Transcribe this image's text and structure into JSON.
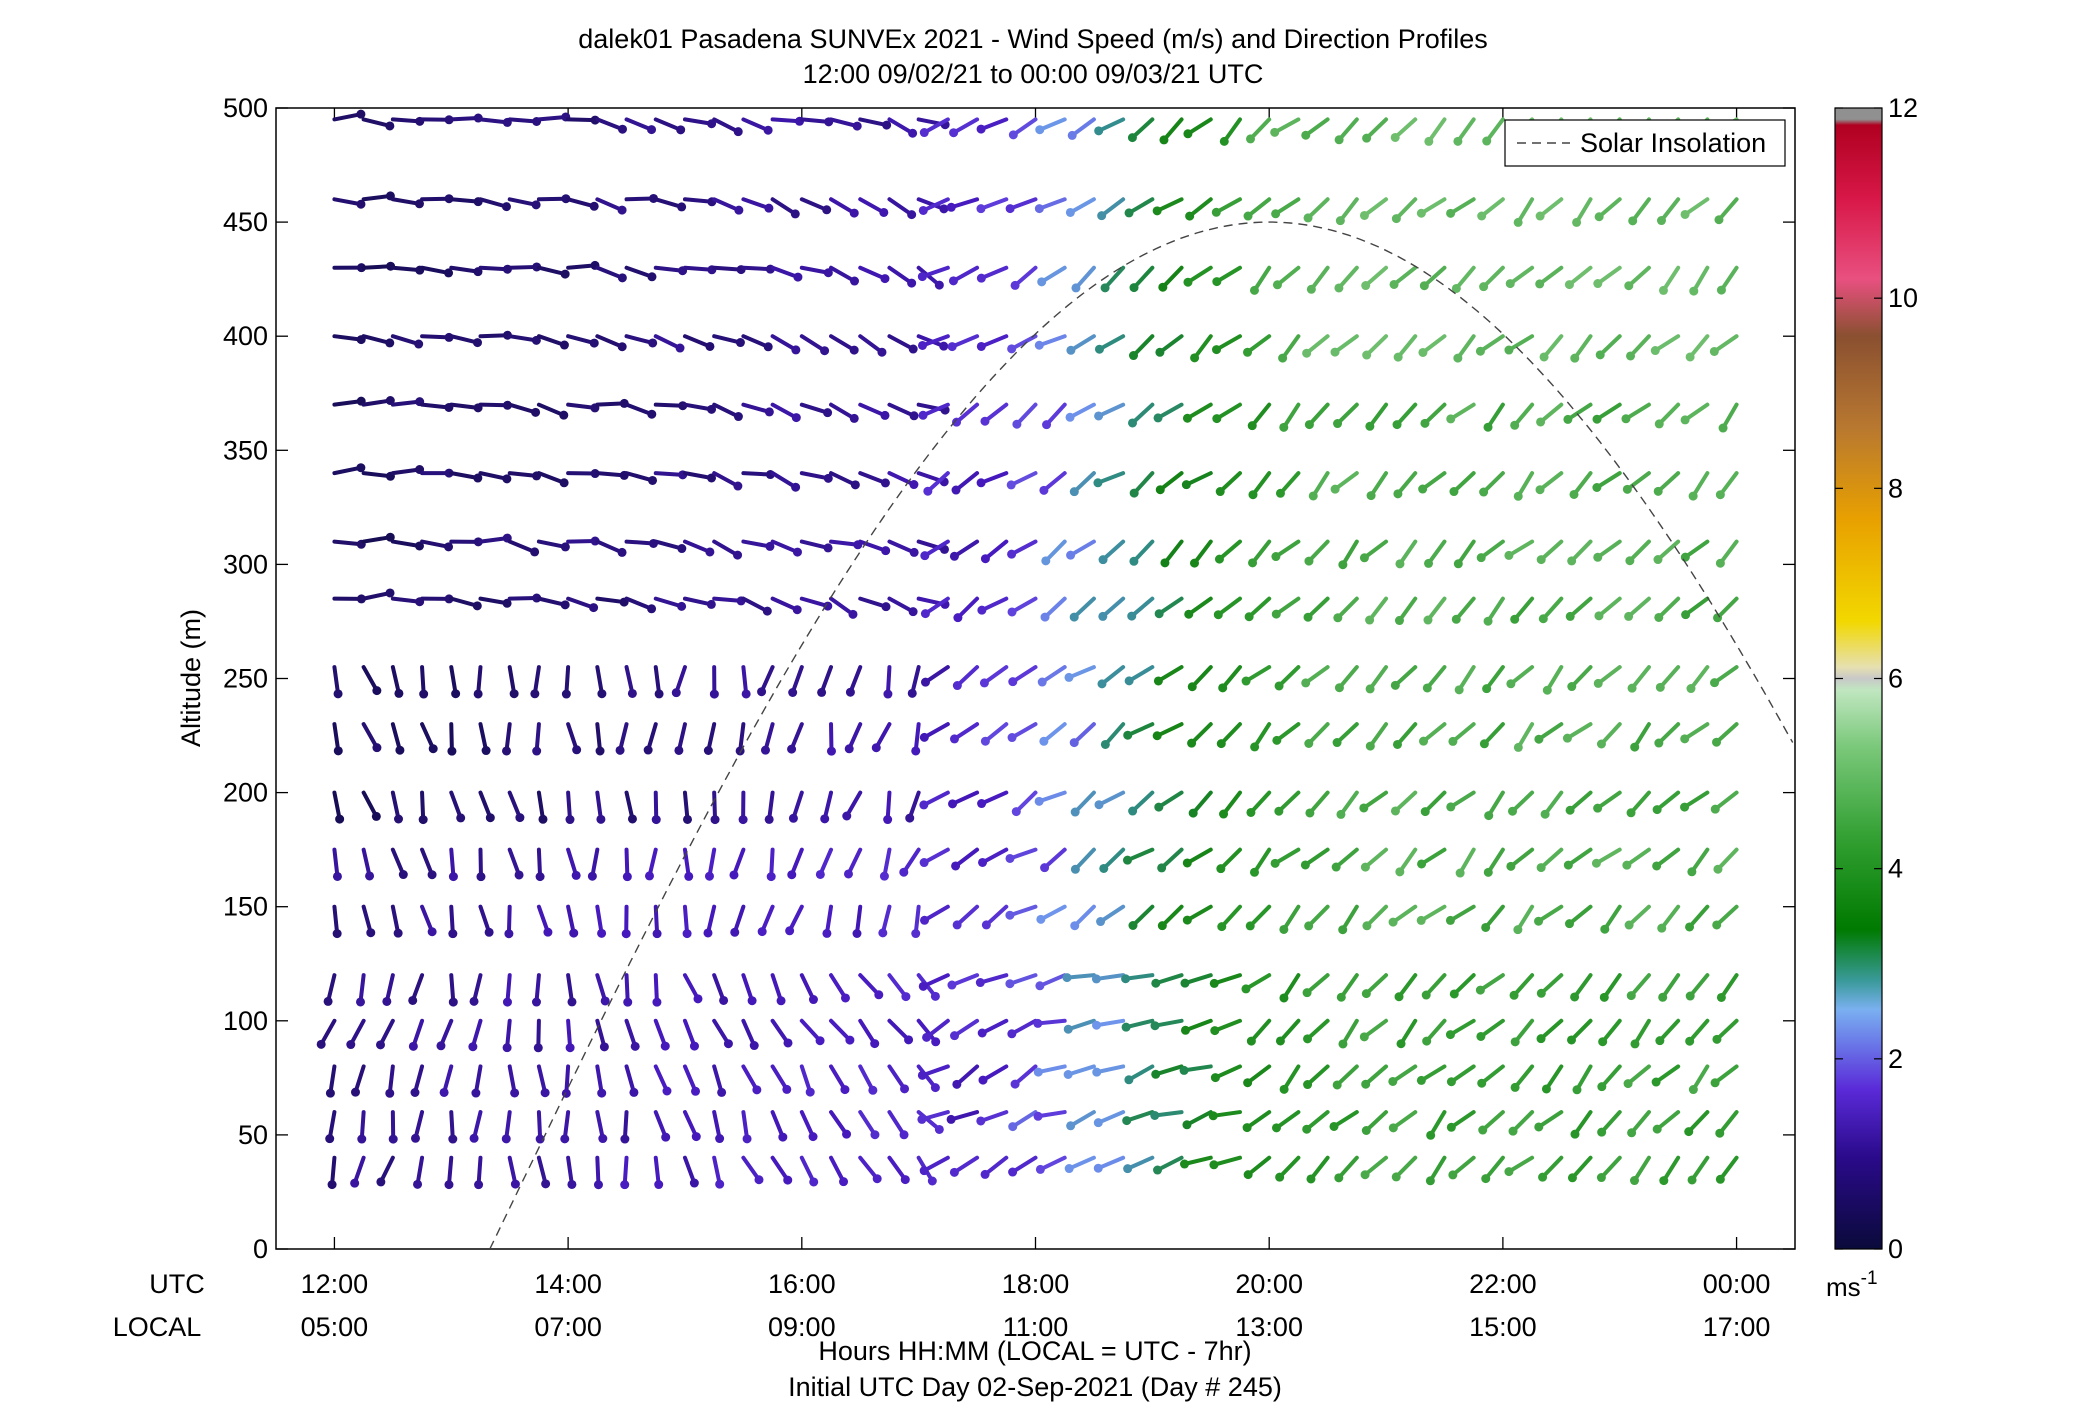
{
  "chart_data": {
    "type": "scatter",
    "title": "dalek01 Pasadena SUNVEx 2021 - Wind Speed (m/s) and Direction Profiles",
    "subtitle": "12:00 09/02/21 to 00:00 09/03/21  UTC",
    "ylabel": "Altitude (m)",
    "xlabel": "Hours HH:MM  (LOCAL = UTC - 7hr)",
    "xlabel2": "Initial UTC Day 02-Sep-2021 (Day # 245)",
    "xlim": [
      12,
      24
    ],
    "ylim": [
      0,
      500
    ],
    "y_ticks": [
      0,
      50,
      100,
      150,
      200,
      250,
      300,
      350,
      400,
      450,
      500
    ],
    "x_ticks": [
      12,
      14,
      16,
      18,
      20,
      22,
      24
    ],
    "utc_row_label": "UTC",
    "local_row_label": "LOCAL",
    "utc_tick_labels": [
      "12:00",
      "14:00",
      "16:00",
      "18:00",
      "20:00",
      "22:00",
      "00:00"
    ],
    "local_tick_labels": [
      "05:00",
      "07:00",
      "09:00",
      "11:00",
      "13:00",
      "15:00",
      "17:00"
    ],
    "altitudes": [
      40,
      60,
      80,
      100,
      120,
      150,
      175,
      200,
      230,
      255,
      285,
      310,
      340,
      370,
      400,
      430,
      460,
      495
    ],
    "time_start": 12.0,
    "time_step": 0.25,
    "time_count": 49,
    "legend": {
      "entries": [
        "Solar Insolation"
      ],
      "placement": "top-right"
    },
    "solar_insolation": {
      "style": "dashed",
      "color": "#333333",
      "peak_time": 20.0,
      "peak_value": 450,
      "zero_time": 13.33
    },
    "colorbar": {
      "min": 0,
      "max": 12,
      "ticks": [
        0,
        2,
        4,
        6,
        8,
        10,
        12
      ],
      "unit_label": "ms",
      "unit_exponent": "-1"
    }
  }
}
